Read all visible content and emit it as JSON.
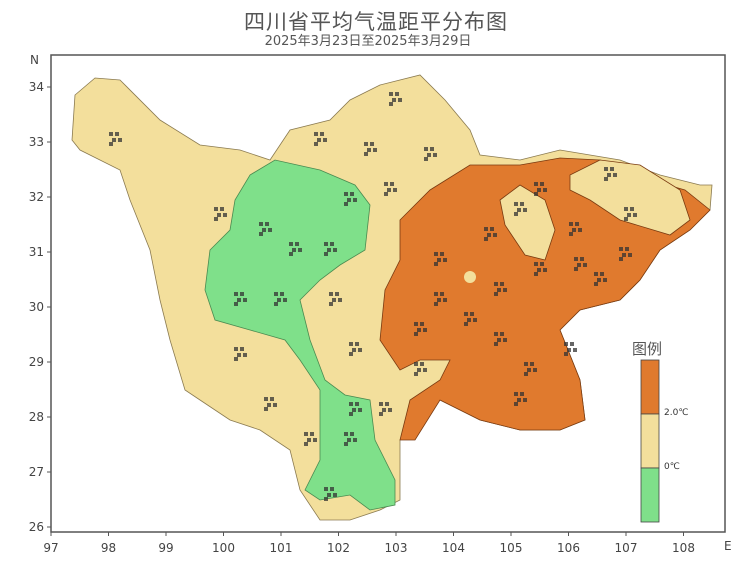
{
  "title": "四川省平均气温距平分布图",
  "subtitle": "2025年3月23日至2025年3月29日",
  "axes": {
    "x_ticks": [
      "97",
      "98",
      "99",
      "100",
      "101",
      "102",
      "103",
      "104",
      "105",
      "106",
      "107",
      "108"
    ],
    "y_ticks": [
      "34",
      "33",
      "32",
      "31",
      "30",
      "29",
      "28",
      "27",
      "26"
    ],
    "x_unit": "E",
    "y_unit": "N"
  },
  "legend": {
    "title": "图例",
    "classes": [
      {
        "range": "> 2.0℃",
        "color": "#e07a2e"
      },
      {
        "range": "0 ~ 2.0℃",
        "color": "#f3df9c"
      },
      {
        "range": "< 0℃",
        "color": "#7fe08a"
      }
    ],
    "labels": [
      "2.0℃",
      "0℃"
    ]
  },
  "colors": {
    "background": "#ffffff",
    "frame": "#555555"
  }
}
